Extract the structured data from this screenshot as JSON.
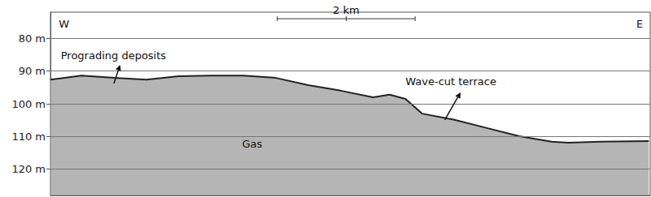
{
  "chart_data": {
    "type": "line",
    "x": [
      0,
      0.45,
      0.93,
      1.39,
      1.86,
      2.33,
      2.8,
      3.27,
      3.74,
      4.21,
      4.68,
      4.92,
      5.15,
      5.39,
      5.86,
      6.33,
      6.8,
      7.27,
      7.51,
      7.98,
      8.68
    ],
    "values": [
      92.6,
      91.4,
      92.1,
      92.6,
      91.6,
      91.4,
      91.4,
      92.1,
      94.3,
      96.0,
      98.0,
      97.2,
      98.5,
      103.0,
      104.9,
      107.4,
      109.9,
      111.6,
      111.9,
      111.6,
      111.4
    ],
    "color": "#222222",
    "xlim": [
      0,
      8.7
    ],
    "ylim": [
      72,
      128
    ],
    "yticks": [
      {
        "value": 80,
        "label": "80 m"
      },
      {
        "value": 90,
        "label": "90 m"
      },
      {
        "value": 100,
        "label": "100 m"
      },
      {
        "value": 110,
        "label": "110 m"
      },
      {
        "value": 120,
        "label": "120 m"
      }
    ],
    "grid": true,
    "tick_labels": "y",
    "annotations": [
      {
        "text": "W",
        "x": 0.12,
        "y": 75.5
      },
      {
        "text": "E",
        "x": 8.5,
        "y": 75.5
      },
      {
        "text": "Prograding deposits",
        "x": 0.15,
        "y": 85.2,
        "arrow": [
          [
            0.92,
            93.8
          ],
          [
            1.01,
            88.1
          ]
        ]
      },
      {
        "text": "Wave-cut terrace",
        "x": 5.15,
        "y": 93.1,
        "arrow": [
          [
            5.72,
            104.9
          ],
          [
            5.95,
            96.5
          ]
        ]
      },
      {
        "text": "Gas",
        "x": 2.78,
        "y": 112.3
      }
    ],
    "scale_bar": {
      "label": "2 km",
      "x": 3.29,
      "y": 74,
      "length": 2
    }
  }
}
